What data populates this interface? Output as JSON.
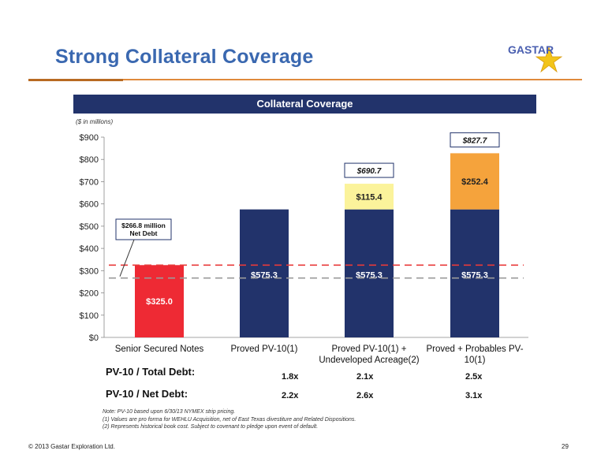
{
  "slide": {
    "title": "Strong Collateral Coverage",
    "logo_text": "GASTAR",
    "banner": "Collateral Coverage",
    "units": "($ in millions)",
    "footer": "© 2013 Gastar Exploration Ltd.",
    "page_number": "29",
    "notes": [
      "Note:  PV-10 based upon 6/30/13 NYMEX strip pricing.",
      "(1) Values are pro forma for WEHLU Acquisition, net of East Texas divestiture and Related Dispositions.",
      "(2) Represents historical book cost. Subject to covenant to pledge upon event of default."
    ]
  },
  "chart_data": {
    "type": "bar",
    "stacked": true,
    "categories": [
      "Senior Secured Notes",
      "Proved PV-10(1)",
      "Proved PV-10(1)   +\nUndeveloped Acreage(2)",
      "Proved + Probables PV-\n10(1)"
    ],
    "ylim": [
      0,
      800
    ],
    "yticks": [
      "$0",
      "$100",
      "$200",
      "$300",
      "$400",
      "$500",
      "$600",
      "$700",
      "$800",
      "$900"
    ],
    "ytick_values": [
      0,
      100,
      200,
      300,
      400,
      500,
      600,
      700,
      800,
      900
    ],
    "segments": [
      {
        "category": 0,
        "base": 0,
        "value": 325.0,
        "label": "$325.0",
        "color": "#ee2a34",
        "label_color": "#ffffff"
      },
      {
        "category": 1,
        "base": 0,
        "value": 575.3,
        "label": "$575.3",
        "color": "#22336b",
        "label_color": "#ffffff",
        "label_at": 282
      },
      {
        "category": 2,
        "base": 0,
        "value": 575.3,
        "label": "$575.3",
        "color": "#22336b",
        "label_color": "#ffffff",
        "label_at": 282
      },
      {
        "category": 2,
        "base": 575.3,
        "value": 115.4,
        "label": "$115.4",
        "color": "#fbf39b",
        "label_color": "#222222"
      },
      {
        "category": 3,
        "base": 0,
        "value": 575.3,
        "label": "$575.3",
        "color": "#22336b",
        "label_color": "#ffffff",
        "label_at": 282
      },
      {
        "category": 3,
        "base": 575.3,
        "value": 252.4,
        "label": "$252.4",
        "color": "#f5a33c",
        "label_color": "#222222"
      }
    ],
    "totals": [
      {
        "category": 2,
        "value": 690.7,
        "label": "$690.7"
      },
      {
        "category": 3,
        "value": 827.7,
        "label": "$827.7"
      }
    ],
    "reference_lines": [
      {
        "value": 325,
        "color": "#e83a3a",
        "style": "dashed"
      },
      {
        "value": 266.8,
        "color": "#9a9a9a",
        "style": "dashed"
      }
    ],
    "callout": {
      "line1": "$266.8 million",
      "line2": "Net Debt",
      "points_to": 266.8
    }
  },
  "ratios": {
    "rows": [
      {
        "label": "PV-10 / Total Debt:",
        "values": [
          "1.8x",
          "2.1x",
          "2.5x"
        ]
      },
      {
        "label": "PV-10 / Net Debt:",
        "values": [
          "2.2x",
          "2.6x",
          "3.1x"
        ]
      }
    ]
  },
  "colors": {
    "title": "#3a68b0",
    "banner": "#22336b",
    "rule": "#e08a3c"
  }
}
